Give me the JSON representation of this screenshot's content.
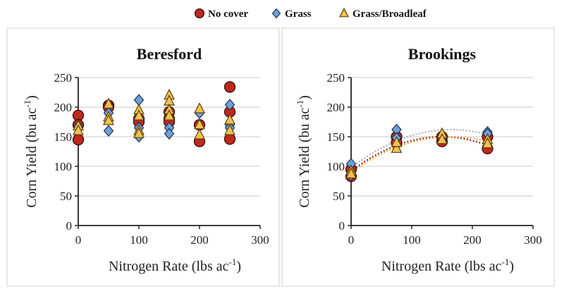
{
  "legend": [
    {
      "name": "No cover",
      "marker": "circle",
      "color": "#c0281e"
    },
    {
      "name": "Grass",
      "marker": "diamond",
      "color": "#6fa0d8"
    },
    {
      "name": "Grass/Broadleaf",
      "marker": "triangle",
      "color": "#f2c14e"
    }
  ],
  "chart_data": [
    {
      "type": "scatter",
      "title": "Beresford",
      "xlabel": "Nitrogen Rate (lbs ac",
      "xlabel_sup": "-1",
      "ylabel": "Corn Yield (bu ac",
      "ylabel_sup": "-1",
      "xlim": [
        0,
        300
      ],
      "ylim": [
        0,
        250
      ],
      "xticks": [
        0,
        100,
        200,
        300
      ],
      "yticks": [
        0,
        50,
        100,
        150,
        200,
        250
      ],
      "grid": "horizontal",
      "series": [
        {
          "name": "No cover",
          "x": [
            0,
            0,
            0,
            50,
            50,
            100,
            100,
            150,
            150,
            150,
            200,
            200,
            250,
            250,
            250
          ],
          "y": [
            186,
            170,
            145,
            203,
            200,
            180,
            175,
            192,
            180,
            175,
            170,
            142,
            234,
            192,
            146
          ]
        },
        {
          "name": "Grass",
          "x": [
            0,
            0,
            50,
            50,
            100,
            100,
            100,
            150,
            150,
            200,
            250,
            250,
            250
          ],
          "y": [
            165,
            168,
            190,
            160,
            212,
            165,
            150,
            165,
            155,
            190,
            204,
            170,
            165
          ]
        },
        {
          "name": "Grass/Broadleaf",
          "x": [
            0,
            0,
            50,
            50,
            50,
            100,
            100,
            100,
            100,
            150,
            150,
            150,
            150,
            200,
            200,
            200,
            250,
            250
          ],
          "y": [
            168,
            160,
            205,
            183,
            177,
            195,
            185,
            160,
            155,
            220,
            210,
            195,
            185,
            197,
            170,
            153,
            178,
            160
          ]
        }
      ]
    },
    {
      "type": "scatter",
      "title": "Brookings",
      "xlabel": "Nitrogen Rate (lbs ac",
      "xlabel_sup": "-1",
      "ylabel": "Corn Yield (bu ac",
      "ylabel_sup": "-1",
      "xlim": [
        0,
        300
      ],
      "ylim": [
        0,
        250
      ],
      "xticks": [
        0,
        100,
        200,
        300
      ],
      "yticks": [
        0,
        50,
        100,
        150,
        200,
        250
      ],
      "grid": "horizontal",
      "series": [
        {
          "name": "No cover",
          "x": [
            0,
            0,
            75,
            75,
            150,
            150,
            225,
            225
          ],
          "y": [
            83,
            95,
            150,
            140,
            142,
            150,
            130,
            150
          ],
          "trendline": {
            "type": "quadratic",
            "coef": [
              92,
              0.773,
              -0.002578
            ],
            "color": "#8b1a10"
          }
        },
        {
          "name": "Grass",
          "x": [
            0,
            0,
            75,
            75,
            150,
            225,
            225
          ],
          "y": [
            104,
            85,
            162,
            148,
            148,
            158,
            155
          ],
          "trendline": {
            "type": "quadratic",
            "coef": [
              98,
              0.7758,
              -0.002351
            ],
            "color": "#a8a8b8"
          }
        },
        {
          "name": "Grass/Broadleaf",
          "x": [
            0,
            0,
            75,
            75,
            150,
            150,
            225,
            225
          ],
          "y": [
            92,
            87,
            130,
            140,
            155,
            145,
            145,
            138
          ],
          "trendline": {
            "type": "quadratic",
            "coef": [
              90,
              0.7273,
              -0.002204
            ],
            "color": "#f0a030"
          }
        }
      ]
    }
  ]
}
